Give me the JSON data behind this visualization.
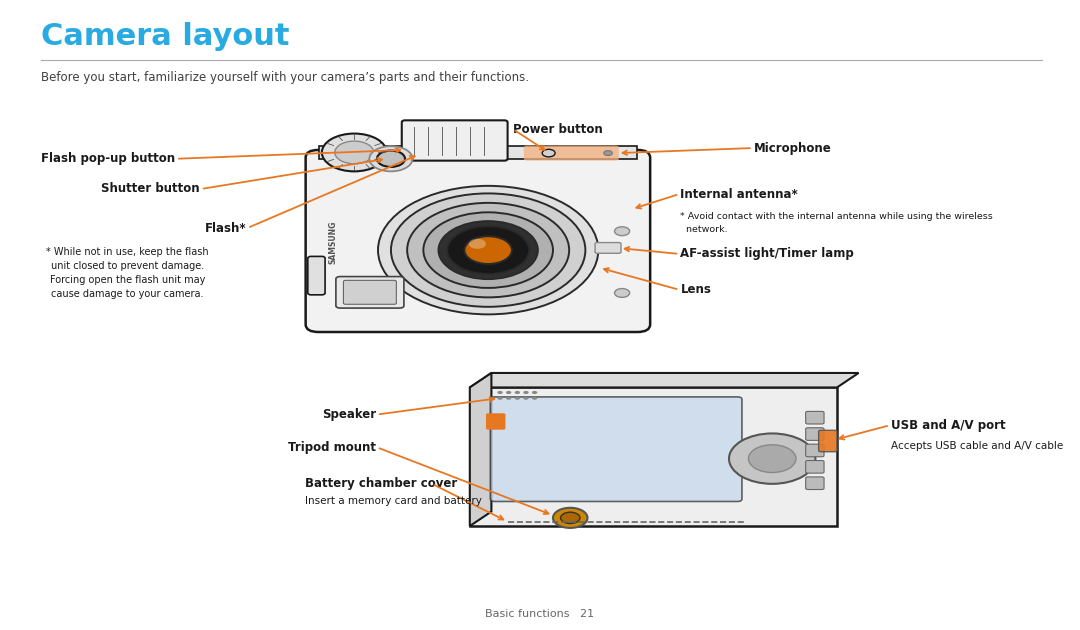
{
  "title": "Camera layout",
  "title_color": "#29ABE2",
  "subtitle": "Before you start, familiarize yourself with your camera’s parts and their functions.",
  "subtitle_color": "#404040",
  "background_color": "#ffffff",
  "arrow_color": "#E87722",
  "label_color": "#1a1a1a",
  "footer_text": "Basic functions   21",
  "flash_note": "* While not in use, keep the flash\nunit closed to prevent damage.\nForcing open the flash unit may\ncause damage to your camera.",
  "antenna_note": "* Avoid contact with the internal antenna while using the wireless\n  network.",
  "usb_note": "Accepts USB cable and A/V cable"
}
